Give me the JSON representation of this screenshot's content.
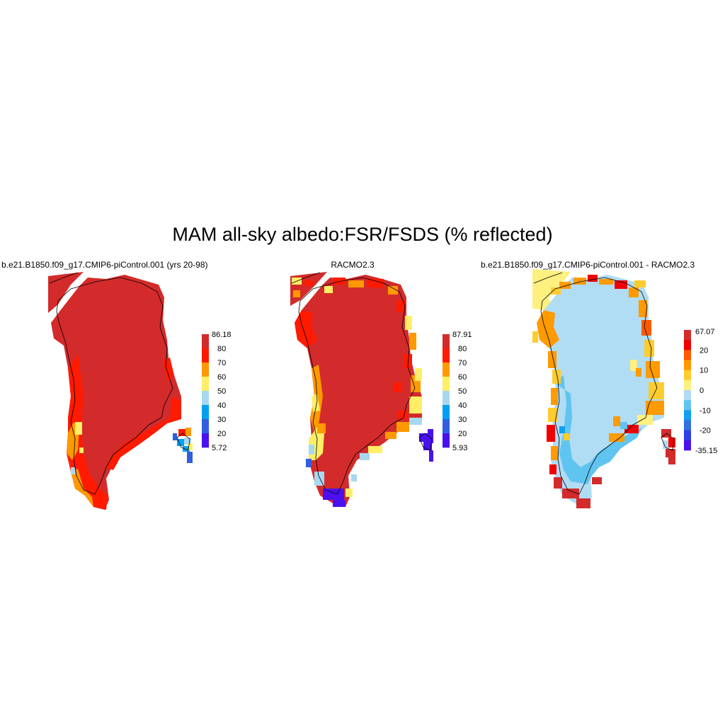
{
  "title": "MAM all-sky albedo:FSR/FSDS (% reflected)",
  "panels": [
    {
      "id": "model",
      "title": "b.e21.B1850.f09_g17.CMIP6-piControl.001 (yrs 20-98)",
      "colorbar": {
        "max_label": "86.18",
        "min_label": "5.72",
        "tick_labels": [
          "80",
          "70",
          "60",
          "50",
          "40",
          "30",
          "20"
        ],
        "colors": [
          "#d32b2b",
          "#ff1a00",
          "#ff9900",
          "#ffee66",
          "#a8d8f0",
          "#00a0f0",
          "#3060e0",
          "#4a10f0"
        ]
      }
    },
    {
      "id": "obs",
      "title": "RACMO2.3",
      "colorbar": {
        "max_label": "87.91",
        "min_label": "5.93",
        "tick_labels": [
          "80",
          "70",
          "60",
          "50",
          "40",
          "30",
          "20"
        ],
        "colors": [
          "#d32b2b",
          "#ff1a00",
          "#ff9900",
          "#ffee66",
          "#a8d8f0",
          "#00a0f0",
          "#3060e0",
          "#4a10f0"
        ]
      }
    },
    {
      "id": "diff",
      "title": "b.e21.B1850.f09_g17.CMIP6-piControl.001 - RACMO2.3",
      "colorbar": {
        "max_label": "67.07",
        "min_label": "-35.15",
        "tick_labels": [
          "20",
          "10",
          "0",
          "-10",
          "-20"
        ],
        "colors": [
          "#d32b2b",
          "#f00000",
          "#ff5a00",
          "#ff9a00",
          "#ffcc30",
          "#fff080",
          "#b0dcf4",
          "#60c4f0",
          "#10a0f0",
          "#3070e0",
          "#3040e8",
          "#4a10f0"
        ]
      }
    }
  ]
}
